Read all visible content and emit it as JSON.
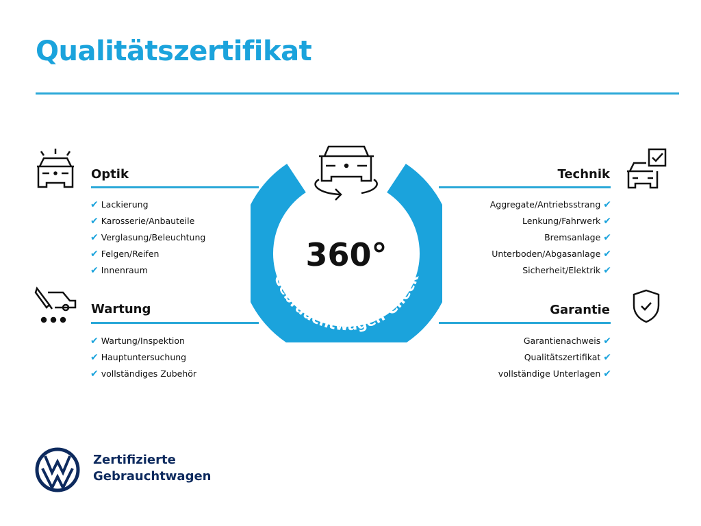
{
  "title": "Qualitätszertifikat",
  "center": {
    "number": "360°",
    "ring_text": "Gebrauchtwagen-Check",
    "ring_color": "#1ba3dc"
  },
  "sections": {
    "optik": {
      "title": "Optik",
      "items": [
        "Lackierung",
        "Karosserie/Anbauteile",
        "Verglasung/Beleuchtung",
        "Felgen/Reifen",
        "Innenraum"
      ]
    },
    "wartung": {
      "title": "Wartung",
      "items": [
        "Wartung/Inspektion",
        "Hauptuntersuchung",
        "vollständiges Zubehör"
      ]
    },
    "technik": {
      "title": "Technik",
      "items": [
        "Aggregate/Antriebsstrang",
        "Lenkung/Fahrwerk",
        "Bremsanlage",
        "Unterboden/Abgasanlage",
        "Sicherheit/Elektrik"
      ]
    },
    "garantie": {
      "title": "Garantie",
      "items": [
        "Garantienachweis",
        "Qualitätszertifikat",
        "vollständige Unterlagen"
      ]
    }
  },
  "check_mark": "✔",
  "brand": {
    "line1": "Zertifizierte",
    "line2": "Gebrauchtwagen",
    "logo_text": "VW"
  },
  "colors": {
    "accent": "#1ba3dc",
    "brand": "#0d2a5e"
  }
}
